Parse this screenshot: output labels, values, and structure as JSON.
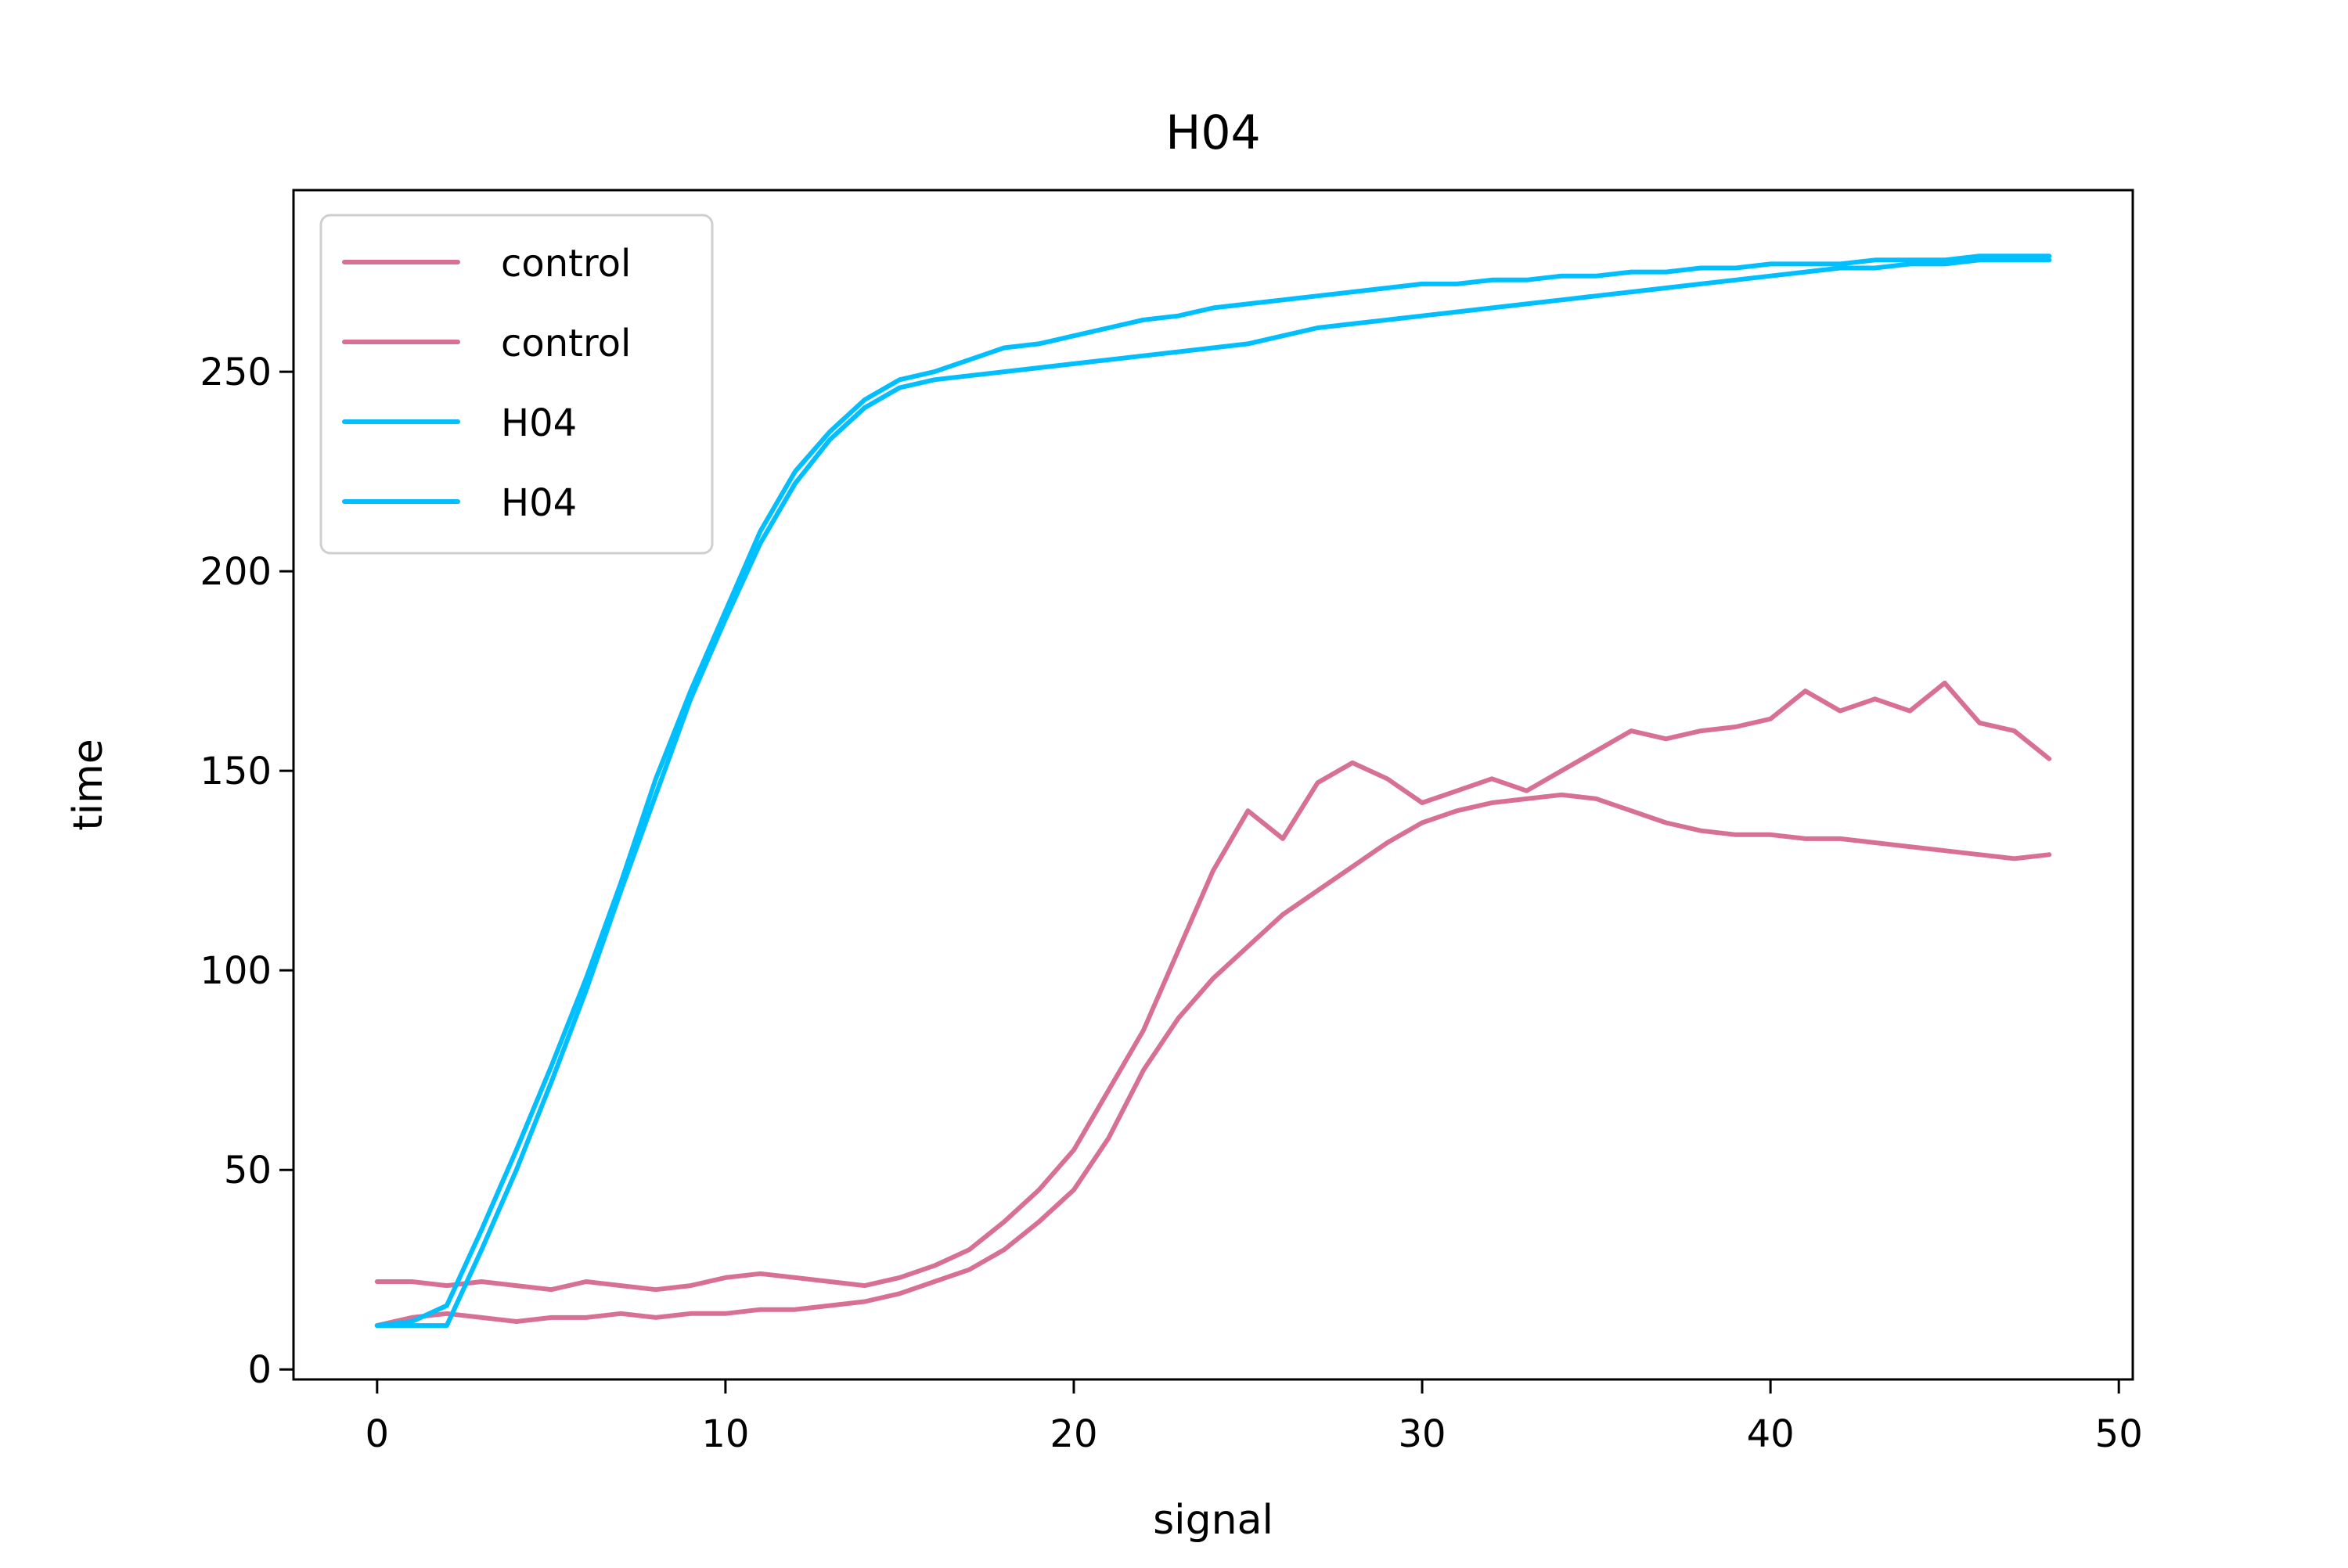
{
  "chart_data": {
    "type": "line",
    "title": "H04",
    "xlabel": "signal",
    "ylabel": "time",
    "xlim": [
      -2.4,
      50.4
    ],
    "ylim": [
      -2.5,
      295.5
    ],
    "xticks": [
      0,
      10,
      20,
      30,
      40,
      50
    ],
    "yticks": [
      0,
      50,
      100,
      150,
      200,
      250
    ],
    "grid": false,
    "legend": {
      "position": "top-left",
      "entries": [
        "control",
        "control",
        "H04",
        "H04"
      ]
    },
    "colors": {
      "control": "#d87093",
      "treatment": "#00bfff"
    },
    "series": [
      {
        "name": "control",
        "color": "#d87093",
        "x": [
          0,
          1,
          2,
          3,
          4,
          5,
          6,
          7,
          8,
          9,
          10,
          11,
          12,
          13,
          14,
          15,
          16,
          17,
          18,
          19,
          20,
          21,
          22,
          23,
          24,
          25,
          26,
          27,
          28,
          29,
          30,
          31,
          32,
          33,
          34,
          35,
          36,
          37,
          38,
          39,
          40,
          41,
          42,
          43,
          44,
          45,
          46,
          47,
          48
        ],
        "y": [
          22,
          22,
          21,
          22,
          21,
          20,
          22,
          21,
          20,
          21,
          23,
          24,
          23,
          22,
          21,
          23,
          26,
          30,
          37,
          45,
          55,
          70,
          85,
          105,
          125,
          140,
          133,
          147,
          152,
          148,
          142,
          145,
          148,
          145,
          150,
          155,
          160,
          158,
          160,
          161,
          163,
          170,
          165,
          168,
          165,
          172,
          162,
          160,
          153
        ]
      },
      {
        "name": "control",
        "color": "#d87093",
        "x": [
          0,
          1,
          2,
          3,
          4,
          5,
          6,
          7,
          8,
          9,
          10,
          11,
          12,
          13,
          14,
          15,
          16,
          17,
          18,
          19,
          20,
          21,
          22,
          23,
          24,
          25,
          26,
          27,
          28,
          29,
          30,
          31,
          32,
          33,
          34,
          35,
          36,
          37,
          38,
          39,
          40,
          41,
          42,
          43,
          44,
          45,
          46,
          47,
          48
        ],
        "y": [
          11,
          13,
          14,
          13,
          12,
          13,
          13,
          14,
          13,
          14,
          14,
          15,
          15,
          16,
          17,
          19,
          22,
          25,
          30,
          37,
          45,
          58,
          75,
          88,
          98,
          106,
          114,
          120,
          126,
          132,
          137,
          140,
          142,
          143,
          144,
          143,
          140,
          137,
          135,
          134,
          134,
          133,
          133,
          132,
          131,
          130,
          129,
          128,
          129
        ]
      },
      {
        "name": "H04",
        "color": "#00bfff",
        "x": [
          0,
          1,
          2,
          3,
          4,
          5,
          6,
          7,
          8,
          9,
          10,
          11,
          12,
          13,
          14,
          15,
          16,
          17,
          18,
          19,
          20,
          21,
          22,
          23,
          24,
          25,
          26,
          27,
          28,
          29,
          30,
          31,
          32,
          33,
          34,
          35,
          36,
          37,
          38,
          39,
          40,
          41,
          42,
          43,
          44,
          45,
          46,
          47,
          48
        ],
        "y": [
          11,
          12,
          16,
          35,
          55,
          76,
          98,
          122,
          148,
          170,
          190,
          210,
          225,
          235,
          243,
          248,
          250,
          253,
          256,
          257,
          259,
          261,
          263,
          264,
          266,
          267,
          268,
          269,
          270,
          271,
          272,
          272,
          273,
          273,
          274,
          274,
          275,
          275,
          276,
          276,
          277,
          277,
          277,
          278,
          278,
          278,
          279,
          279,
          279
        ]
      },
      {
        "name": "H04",
        "color": "#00bfff",
        "x": [
          0,
          1,
          2,
          3,
          4,
          5,
          6,
          7,
          8,
          9,
          10,
          11,
          12,
          13,
          14,
          15,
          16,
          17,
          18,
          19,
          20,
          21,
          22,
          23,
          24,
          25,
          26,
          27,
          28,
          29,
          30,
          31,
          32,
          33,
          34,
          35,
          36,
          37,
          38,
          39,
          40,
          41,
          42,
          43,
          44,
          45,
          46,
          47,
          48
        ],
        "y": [
          11,
          11,
          11,
          30,
          50,
          72,
          95,
          120,
          144,
          168,
          188,
          207,
          222,
          233,
          241,
          246,
          248,
          249,
          250,
          251,
          252,
          253,
          254,
          255,
          256,
          257,
          259,
          261,
          262,
          263,
          264,
          265,
          266,
          267,
          268,
          269,
          270,
          271,
          272,
          273,
          274,
          275,
          276,
          276,
          277,
          277,
          278,
          278,
          278
        ]
      }
    ]
  }
}
